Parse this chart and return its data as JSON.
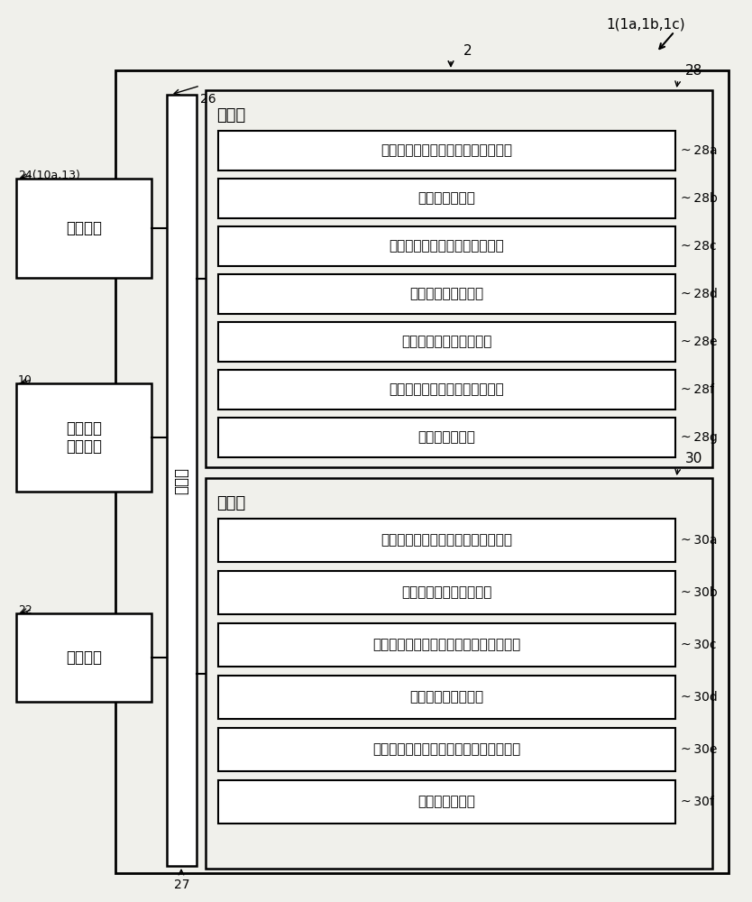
{
  "bg_color": "#f0f0eb",
  "white": "#ffffff",
  "black": "#000000",
  "label_1": "1(1a,1b,1c)",
  "label_2": "2",
  "label_26": "26",
  "label_27": "27",
  "label_28": "28",
  "label_30": "30",
  "label_24": "24(10a,13)",
  "label_10": "10",
  "label_22": "22",
  "box_input_title": "输入装置",
  "box_device_line1": "电子部件",
  "box_device_line2": "安装装置",
  "box_display": "显示装置",
  "comm_label": "通信部",
  "proc_title": "处理部",
  "proc_items": [
    "识别记号－位置记号关联数据生成部",
    "识别记号关联部",
    "位置记号－部件识别记号关联部",
    "代表识别记号对照部",
    "识别记号关联数据提取部",
    "识别记号－部件识别记号关联部",
    "部件信息检测部"
  ],
  "proc_labels": [
    "28a",
    "28b",
    "28c",
    "28d",
    "28e",
    "28f",
    "28g"
  ],
  "stor_title": "存储部",
  "stor_items": [
    "识别记号－位置记号关联数据存储部",
    "识别记号关联数据存储部",
    "位置记号－部件识别记号关联数据存储部",
    "代表识别记号存储部",
    "识别记号－部件识别记号关联数据存储部",
    "生产程序存储部"
  ],
  "stor_labels": [
    "30a",
    "30b",
    "30c",
    "30d",
    "30e",
    "30f"
  ]
}
